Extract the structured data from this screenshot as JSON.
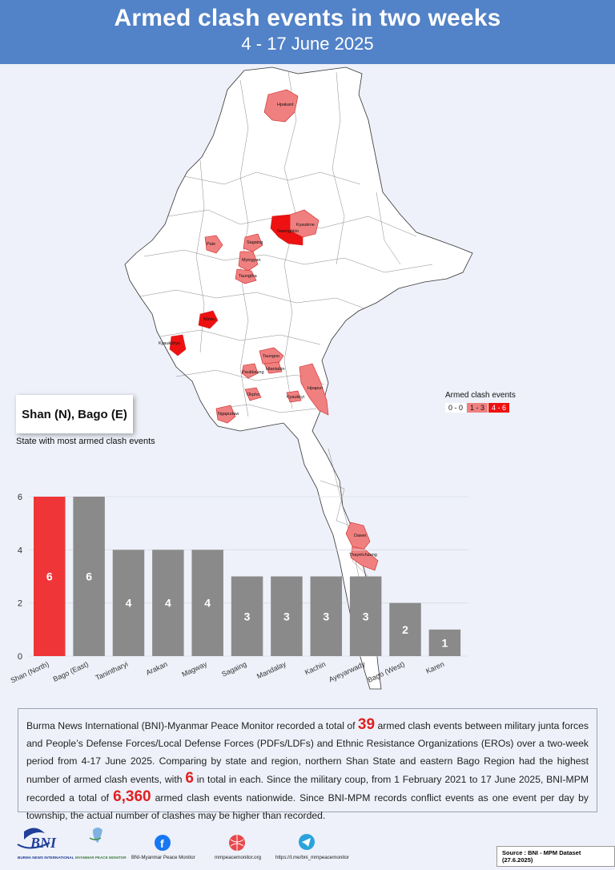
{
  "header": {
    "title": "Armed clash events in two weeks",
    "subtitle": "4 - 17 June 2025"
  },
  "colors": {
    "header_bg": "#5282c7",
    "low": "#f08080",
    "high": "#ee1111",
    "bar_max": "#ef3538",
    "bar_other": "#8a8a8a"
  },
  "map": {
    "labels": {
      "hpakant": "Hpakant",
      "kyaukme": "Kyaukme",
      "nawnghkio": "Nawnghkio",
      "pale": "Pale",
      "sagaing": "Sagaing",
      "myingyan": "Myingyan",
      "taungtha": "Taungtha",
      "minbu": "Minbu",
      "kyaukphyu": "Kyaukphyu",
      "taungoo": "Taungoo",
      "htantabin": "Htantabin",
      "paukkaung": "Paukkaung",
      "hpapun": "Hpapun",
      "okpho": "Okpho",
      "kyaukkyi": "Kyaukkyi",
      "ngapudaw": "Ngapudaw",
      "dawei": "Dawei",
      "thayetchaung": "Thayetchaung"
    }
  },
  "legend": {
    "title": "Armed clash events",
    "items": [
      {
        "label": "0 - 0",
        "color": "#ffffff"
      },
      {
        "label": "1 - 3",
        "color": "#f08080"
      },
      {
        "label": "4 - 6",
        "color": "#ee1111"
      }
    ]
  },
  "callout": {
    "value": "Shan (N), Bago (E)",
    "caption": "State with most armed clash events"
  },
  "chart_data": {
    "type": "bar",
    "categories": [
      "Shan (North)",
      "Bago (East)",
      "Tanintharyi",
      "Arakan",
      "Magway",
      "Sagaing",
      "Mandalay",
      "Kachin",
      "Ayeyarwady",
      "Bago (West)",
      "Karen"
    ],
    "values": [
      6,
      6,
      4,
      4,
      4,
      3,
      3,
      3,
      3,
      2,
      1
    ],
    "ylim": [
      0,
      6
    ],
    "yticks": [
      0,
      2,
      4,
      6
    ],
    "grid": true,
    "highlight_index": 0
  },
  "summary": {
    "p1": "Burma News International (BNI)-Myanmar Peace Monitor recorded a total of ",
    "n1": "39",
    "p2": " armed clash events between military junta forces and People’s Defense Forces/Local Defense Forces (PDFs/LDFs) and Ethnic Resistance Organizations (EROs) over a two-week period from 4-17 June 2025. Comparing by state and region, northern Shan State and eastern Bago Region had the highest number of armed clash events, with ",
    "n2": "6",
    "p3": " in total in each. Since the military coup, from 1 February 2021 to 17 June 2025, BNI-MPM recorded a total of ",
    "n3": "6,360",
    "p4": " armed clash events nationwide. Since BNI-MPM records conflict events as one event per day by township, the actual number of clashes may be higher than recorded."
  },
  "footer": {
    "bni_logo": "BNI",
    "bni_name": "BURMA NEWS INTERNATIONAL",
    "mpm_name": "MYANMAR PEACE MONITOR",
    "facebook": "BNI-Myanmar Peace Monitor",
    "website": "mmpeacemonitor.org",
    "telegram": "https://t.me/bni_mmpeacemonitor",
    "source": "Source : BNI - MPM Dataset (27.6.2025)"
  }
}
